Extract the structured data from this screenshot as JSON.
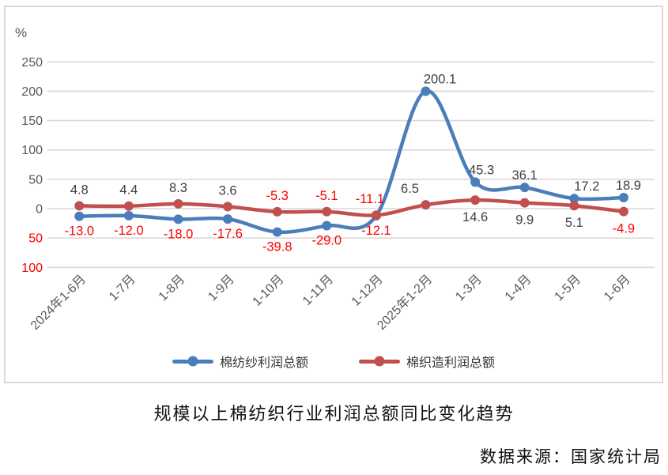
{
  "unit_label": "%",
  "title": "规模以上棉纺织行业利润总额同比变化趋势",
  "source": "数据来源：国家统计局",
  "colors": {
    "series_blue": "#4A7EBB",
    "series_red": "#C0504D",
    "gridline": "#D9D9D9",
    "axis_text": "#595959",
    "label_positive": "#404040",
    "label_negative": "#FF0000"
  },
  "chart_data": {
    "type": "line",
    "title": "规模以上棉纺织行业利润总额同比变化趋势",
    "xlabel": "",
    "ylabel": "%",
    "categories": [
      "2024年1-6月",
      "1-7月",
      "1-8月",
      "1-9月",
      "1-10月",
      "1-11月",
      "1-12月",
      "2025年1-2月",
      "1-3月",
      "1-4月",
      "1-5月",
      "1-6月"
    ],
    "series": [
      {
        "name": "棉纺纱利润总额",
        "color": "#4A7EBB",
        "values": [
          -13.0,
          -12.0,
          -18.0,
          -17.6,
          -39.8,
          -29.0,
          -12.1,
          200.1,
          45.3,
          36.1,
          17.2,
          18.9
        ],
        "label_side": [
          "below",
          "below",
          "below",
          "below",
          "below",
          "below",
          "below",
          "above",
          "above",
          "above",
          "above",
          "above"
        ],
        "label_dx": [
          0,
          0,
          0,
          0,
          0,
          0,
          0,
          18,
          8,
          0,
          16,
          6
        ]
      },
      {
        "name": "棉织造利润总额",
        "color": "#C0504D",
        "values": [
          4.8,
          4.4,
          8.3,
          3.6,
          -5.3,
          -5.1,
          -11.1,
          6.5,
          14.6,
          9.9,
          5.1,
          -4.9
        ],
        "label_side": [
          "above",
          "above",
          "above",
          "above",
          "above",
          "above",
          "above",
          "above",
          "below",
          "below",
          "below",
          "below"
        ],
        "label_dx": [
          0,
          0,
          0,
          0,
          0,
          0,
          -8,
          -20,
          0,
          0,
          0,
          0
        ]
      }
    ],
    "ylim": [
      -100,
      250
    ],
    "ytick_step": 50,
    "negative_ticks_shown_unsigned": true,
    "grid": true,
    "legend_position": "bottom",
    "source": "数据来源：国家统计局"
  }
}
